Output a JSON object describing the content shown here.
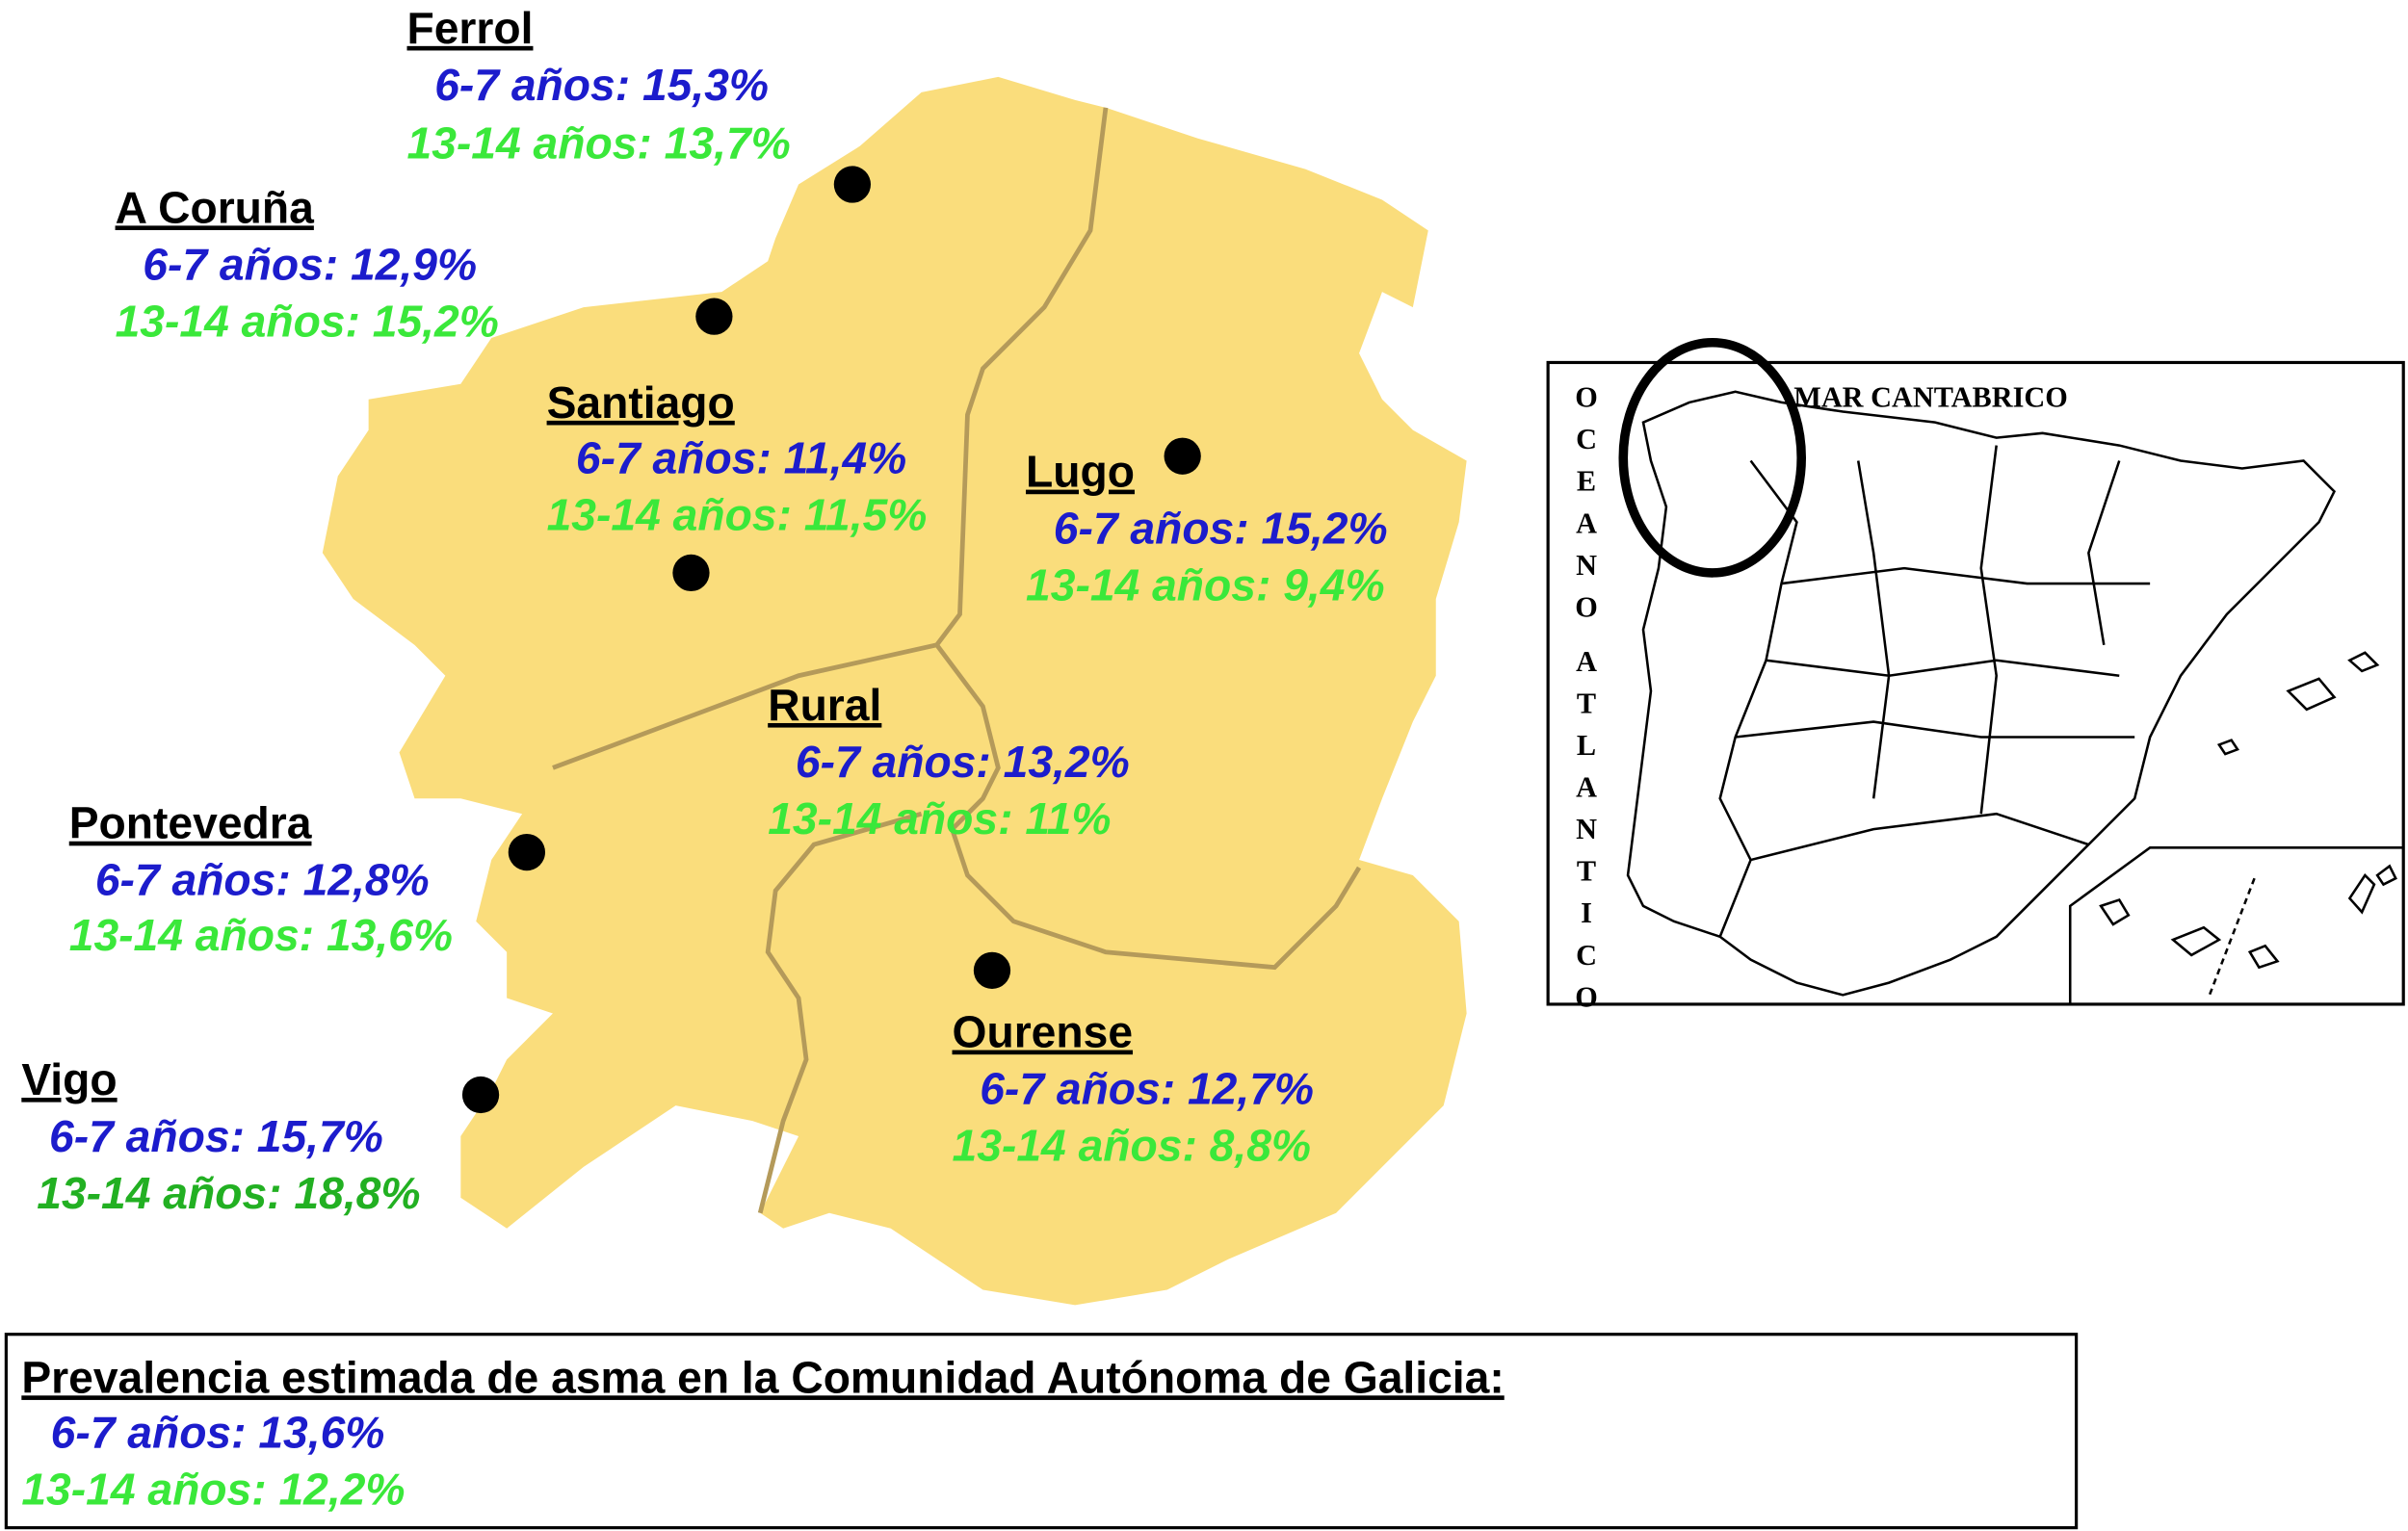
{
  "cities": [
    {
      "name": "Ferrol",
      "young": "6-7 años: 15,3%",
      "teen": "13-14 años: 13,7%"
    },
    {
      "name": "A Coruña",
      "young": "6-7 años: 12,9%",
      "teen": "13-14 años: 15,2%"
    },
    {
      "name": "Santiago",
      "young": "6-7 años: 11,4%",
      "teen": "13-14 años: 11,5%"
    },
    {
      "name": "Lugo",
      "young": "6-7 años: 15,2%",
      "teen": "13-14 años: 9,4%"
    },
    {
      "name": "Rural",
      "young": "6-7 años: 13,2%",
      "teen": "13-14 años: 11%"
    },
    {
      "name": "Pontevedra",
      "young": "6-7 años: 12,8%",
      "teen": "13-14 años: 13,6%"
    },
    {
      "name": "Vigo",
      "young": "6-7 años: 15,7%",
      "teen": "13-14 años: 18,8%"
    },
    {
      "name": "Ourense",
      "young": "6-7 años: 12,7%",
      "teen": "13-14 años: 8,8%"
    }
  ],
  "summary": {
    "title": "Prevalencia estimada de asma en la Comunidad Autónoma de Galicia:",
    "young": "6-7 años: 13,6%",
    "teen": "13-14 años: 12,2%"
  },
  "inset": {
    "ocean_1": "OCEANO",
    "ocean_2": "ATLANTICO",
    "sea": "MAR CANTABRICO"
  }
}
